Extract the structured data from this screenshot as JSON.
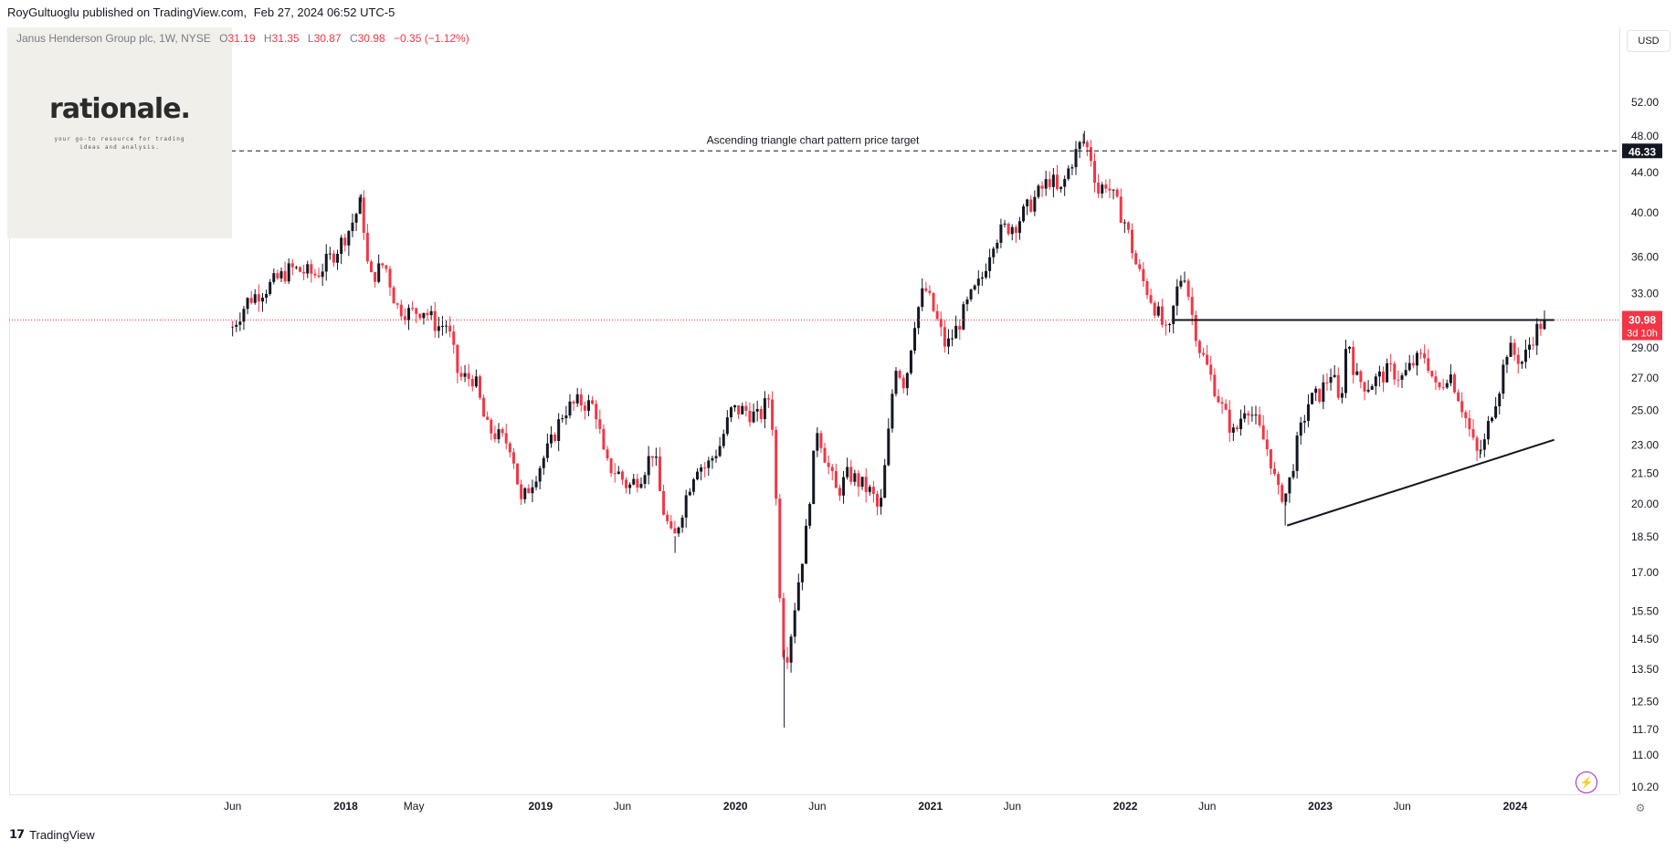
{
  "header": {
    "author": "RoyGultuoglu published on TradingView.com,",
    "datetime": "Feb 27, 2024 06:52 UTC-5"
  },
  "legend": {
    "symbol": "Janus Henderson Group plc, 1W, NYSE",
    "open_label": "O",
    "open": "31.19",
    "high_label": "H",
    "high": "31.35",
    "low_label": "L",
    "low": "30.87",
    "close_label": "C",
    "close": "30.98",
    "change": "−0.35 (−1.12%)"
  },
  "logo": {
    "text": "rationale.",
    "tagline_1": "your go-to resource for trading",
    "tagline_2": "ideas and analysis."
  },
  "toolbar": {
    "currency": "USD"
  },
  "footer": {
    "brand": "TradingView",
    "brand_icon": "tradingview-logo-icon"
  },
  "icons": {
    "bolt": "bolt-icon",
    "settings": "chart-settings-icon"
  },
  "colors": {
    "up": "#131722",
    "down": "#f23645",
    "price_line": "#f23645",
    "last_price_bg": "#f23645",
    "target_bg": "#131722"
  },
  "chart_data": {
    "type": "candlestick",
    "scale": "log",
    "ylim": [
      10.2,
      56.0
    ],
    "y_ticks": [
      "52.00",
      "48.00",
      "44.00",
      "40.00",
      "36.00",
      "33.00",
      "31.00",
      "29.00",
      "27.00",
      "25.00",
      "23.00",
      "21.50",
      "20.00",
      "18.50",
      "17.00",
      "15.50",
      "14.50",
      "13.50",
      "12.50",
      "11.70",
      "11.00",
      "10.20"
    ],
    "x_ticks": [
      {
        "label": "Jun",
        "t": 2017.42,
        "bold": false
      },
      {
        "label": "2018",
        "t": 2018.0,
        "bold": true
      },
      {
        "label": "May",
        "t": 2018.35,
        "bold": false
      },
      {
        "label": "2019",
        "t": 2019.0,
        "bold": true
      },
      {
        "label": "Jun",
        "t": 2019.42,
        "bold": false
      },
      {
        "label": "2020",
        "t": 2020.0,
        "bold": true
      },
      {
        "label": "Jun",
        "t": 2020.42,
        "bold": false
      },
      {
        "label": "2021",
        "t": 2021.0,
        "bold": true
      },
      {
        "label": "Jun",
        "t": 2021.42,
        "bold": false
      },
      {
        "label": "2022",
        "t": 2022.0,
        "bold": true
      },
      {
        "label": "Jun",
        "t": 2022.42,
        "bold": false
      },
      {
        "label": "2023",
        "t": 2023.0,
        "bold": true
      },
      {
        "label": "Jun",
        "t": 2023.42,
        "bold": false
      },
      {
        "label": "2024",
        "t": 2024.0,
        "bold": true
      }
    ],
    "x_range": [
      2017.0,
      2024.45
    ],
    "close_path": [
      [
        2017.42,
        30.5
      ],
      [
        2017.5,
        32.5
      ],
      [
        2017.6,
        33.5
      ],
      [
        2017.72,
        35.0
      ],
      [
        2017.85,
        34.5
      ],
      [
        2017.95,
        36.5
      ],
      [
        2018.02,
        38.5
      ],
      [
        2018.08,
        41.0
      ],
      [
        2018.12,
        34.0
      ],
      [
        2018.2,
        35.5
      ],
      [
        2018.26,
        32.0
      ],
      [
        2018.33,
        31.5
      ],
      [
        2018.4,
        31.8
      ],
      [
        2018.47,
        30.5
      ],
      [
        2018.52,
        30.7
      ],
      [
        2018.58,
        27.0
      ],
      [
        2018.66,
        27.0
      ],
      [
        2018.72,
        24.0
      ],
      [
        2018.78,
        23.5
      ],
      [
        2018.85,
        23.0
      ],
      [
        2018.9,
        20.0
      ],
      [
        2018.95,
        21.0
      ],
      [
        2019.05,
        23.0
      ],
      [
        2019.12,
        25.0
      ],
      [
        2019.2,
        25.5
      ],
      [
        2019.28,
        25.2
      ],
      [
        2019.33,
        22.0
      ],
      [
        2019.4,
        21.5
      ],
      [
        2019.45,
        20.8
      ],
      [
        2019.52,
        21.5
      ],
      [
        2019.58,
        22.8
      ],
      [
        2019.62,
        20.0
      ],
      [
        2019.68,
        18.2
      ],
      [
        2019.75,
        20.5
      ],
      [
        2019.8,
        22.0
      ],
      [
        2019.85,
        21.8
      ],
      [
        2019.92,
        23.0
      ],
      [
        2019.98,
        25.0
      ],
      [
        2020.05,
        25.0
      ],
      [
        2020.12,
        24.5
      ],
      [
        2020.18,
        26.0
      ],
      [
        2020.2,
        22.0
      ],
      [
        2020.22,
        17.5
      ],
      [
        2020.24,
        14.2
      ],
      [
        2020.27,
        14.0
      ],
      [
        2020.31,
        16.0
      ],
      [
        2020.36,
        18.5
      ],
      [
        2020.42,
        24.0
      ],
      [
        2020.47,
        22.0
      ],
      [
        2020.52,
        20.5
      ],
      [
        2020.58,
        21.5
      ],
      [
        2020.64,
        21.0
      ],
      [
        2020.7,
        20.5
      ],
      [
        2020.74,
        19.5
      ],
      [
        2020.78,
        23.0
      ],
      [
        2020.82,
        28.0
      ],
      [
        2020.87,
        26.5
      ],
      [
        2020.92,
        31.0
      ],
      [
        2020.97,
        33.5
      ],
      [
        2021.02,
        31.5
      ],
      [
        2021.08,
        29.0
      ],
      [
        2021.14,
        30.5
      ],
      [
        2021.2,
        32.5
      ],
      [
        2021.26,
        34.0
      ],
      [
        2021.32,
        37.5
      ],
      [
        2021.38,
        38.5
      ],
      [
        2021.44,
        39.0
      ],
      [
        2021.5,
        40.5
      ],
      [
        2021.56,
        42.0
      ],
      [
        2021.62,
        43.5
      ],
      [
        2021.66,
        41.5
      ],
      [
        2021.72,
        45.0
      ],
      [
        2021.78,
        47.5
      ],
      [
        2021.82,
        46.0
      ],
      [
        2021.86,
        42.0
      ],
      [
        2021.9,
        43.0
      ],
      [
        2021.95,
        41.0
      ],
      [
        2022.0,
        39.0
      ],
      [
        2022.06,
        35.0
      ],
      [
        2022.12,
        33.0
      ],
      [
        2022.18,
        31.0
      ],
      [
        2022.22,
        29.5
      ],
      [
        2022.26,
        33.0
      ],
      [
        2022.3,
        35.0
      ],
      [
        2022.34,
        31.5
      ],
      [
        2022.38,
        29.0
      ],
      [
        2022.44,
        27.0
      ],
      [
        2022.5,
        25.0
      ],
      [
        2022.56,
        23.5
      ],
      [
        2022.62,
        25.5
      ],
      [
        2022.68,
        24.0
      ],
      [
        2022.74,
        22.5
      ],
      [
        2022.78,
        20.5
      ],
      [
        2022.83,
        20.5
      ],
      [
        2022.88,
        23.0
      ],
      [
        2022.94,
        25.5
      ],
      [
        2023.0,
        26.0
      ],
      [
        2023.06,
        27.5
      ],
      [
        2023.1,
        25.0
      ],
      [
        2023.14,
        30.0
      ],
      [
        2023.18,
        27.0
      ],
      [
        2023.24,
        26.5
      ],
      [
        2023.3,
        27.0
      ],
      [
        2023.36,
        27.5
      ],
      [
        2023.42,
        27.0
      ],
      [
        2023.48,
        28.0
      ],
      [
        2023.54,
        28.5
      ],
      [
        2023.6,
        26.0
      ],
      [
        2023.66,
        27.5
      ],
      [
        2023.72,
        25.5
      ],
      [
        2023.76,
        24.0
      ],
      [
        2023.8,
        22.5
      ],
      [
        2023.84,
        23.0
      ],
      [
        2023.88,
        25.0
      ],
      [
        2023.92,
        26.5
      ],
      [
        2023.96,
        29.0
      ],
      [
        2024.0,
        28.5
      ],
      [
        2024.04,
        28.0
      ],
      [
        2024.08,
        29.5
      ],
      [
        2024.12,
        30.5
      ],
      [
        2024.15,
        30.98
      ]
    ],
    "lows_highlight": [
      {
        "t": 2017.42,
        "v": 29.8
      },
      {
        "t": 2018.08,
        "v": 41.8
      },
      {
        "t": 2019.69,
        "v": 17.8
      },
      {
        "t": 2020.25,
        "v": 11.75
      },
      {
        "t": 2021.79,
        "v": 48.6
      },
      {
        "t": 2022.82,
        "v": 19.0
      },
      {
        "t": 2023.82,
        "v": 22.3
      }
    ],
    "annotations": {
      "target_label": "Ascending triangle chart pattern price target",
      "target_price": 46.33,
      "target_price_text": "46.33",
      "resistance": {
        "t1": 2022.25,
        "t2": 2024.2,
        "v": 30.98
      },
      "trendline": {
        "t1": 2022.83,
        "v1": 19.0,
        "t2": 2024.2,
        "v2": 23.3
      },
      "last_price_text": "30.98",
      "countdown_text": "3d 10h"
    }
  }
}
